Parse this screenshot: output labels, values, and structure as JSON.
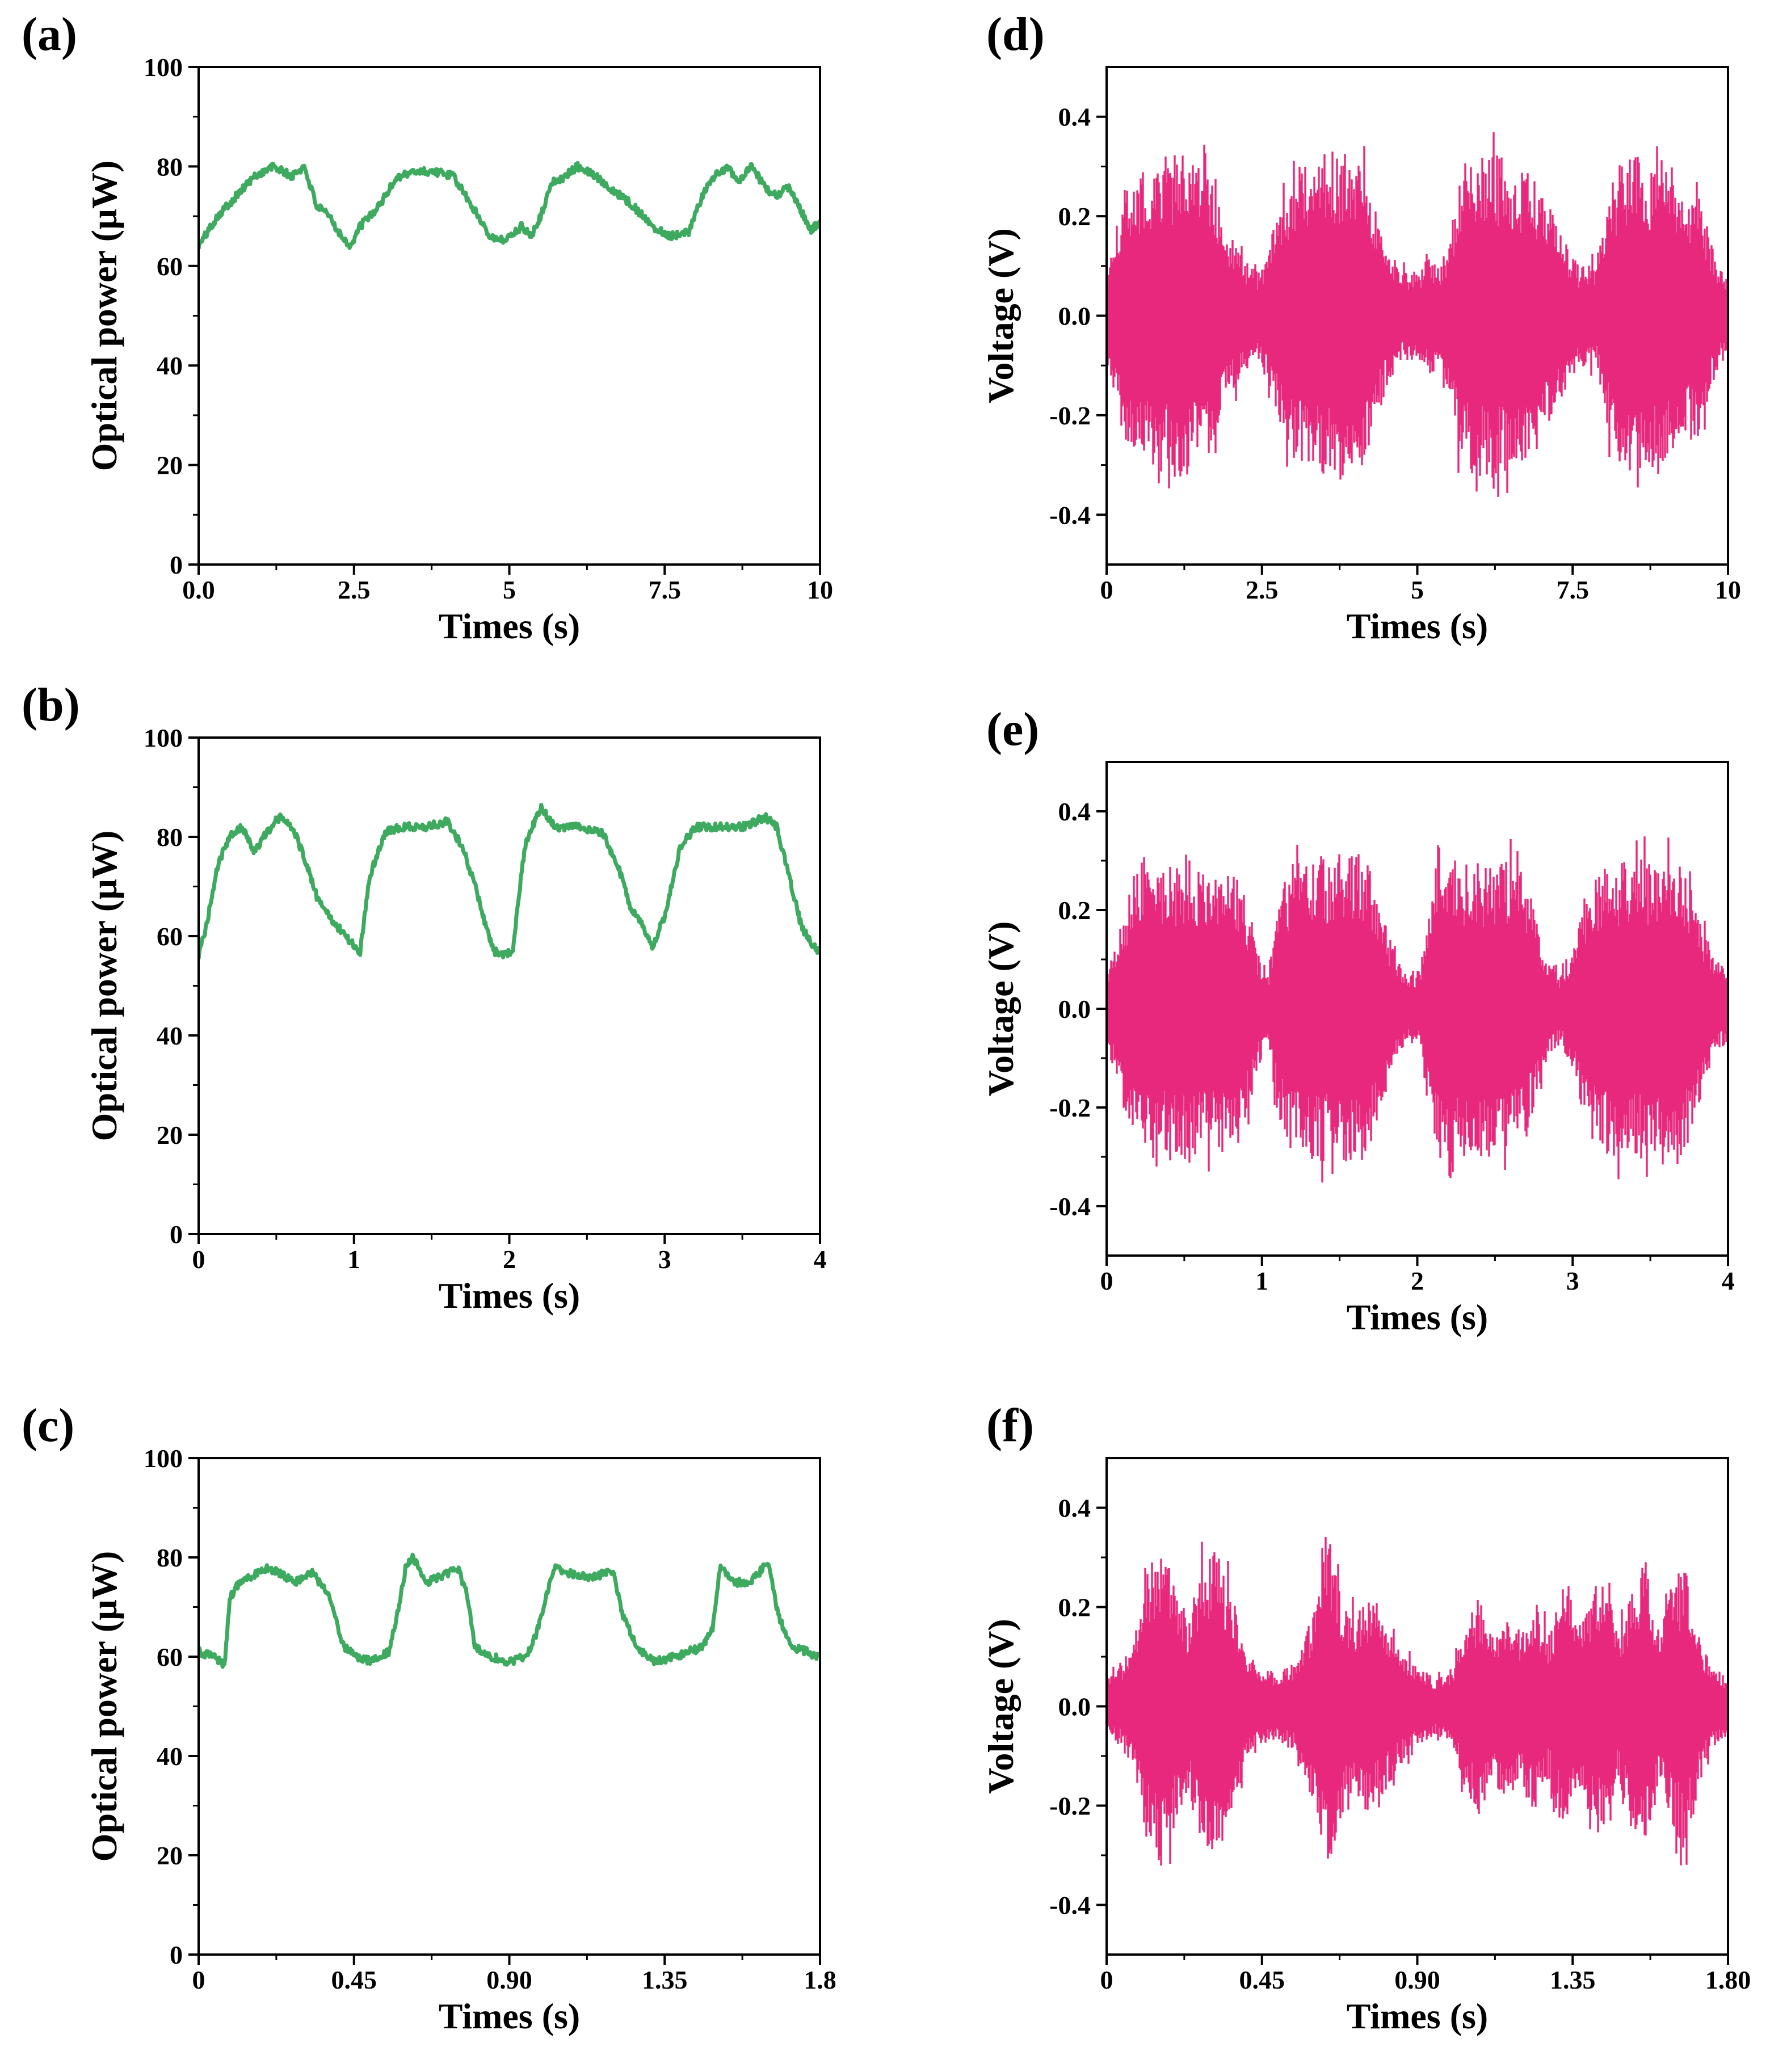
{
  "chart_data": [
    {
      "id": "a",
      "panel_label": "(a)",
      "type": "line",
      "signal": "power",
      "xlabel": "Times (s)",
      "ylabel": "Optical power (µW)",
      "xlim": [
        0,
        10
      ],
      "ylim": [
        0,
        100
      ],
      "xticks": [
        0,
        2.5,
        5,
        7.5,
        10
      ],
      "xtick_labels": [
        "0.0",
        "2.5",
        "5",
        "7.5",
        "10"
      ],
      "yticks": [
        0,
        20,
        40,
        60,
        80,
        100
      ],
      "ytick_labels": [
        "0",
        "20",
        "40",
        "60",
        "80",
        "100"
      ],
      "color": "#3daa5f",
      "series": [
        {
          "name": "Optical power",
          "x": [
            0,
            0.3,
            0.6,
            0.9,
            1.2,
            1.5,
            1.7,
            1.9,
            2.1,
            2.3,
            2.45,
            2.6,
            2.9,
            3.2,
            3.5,
            3.8,
            4.1,
            4.3,
            4.5,
            4.7,
            4.85,
            5,
            5.2,
            5.35,
            5.5,
            5.7,
            5.9,
            6.1,
            6.4,
            6.7,
            7,
            7.3,
            7.6,
            7.9,
            8.1,
            8.3,
            8.5,
            8.7,
            8.9,
            9.1,
            9.3,
            9.5,
            9.7,
            9.85,
            10
          ],
          "y": [
            64,
            70,
            74,
            78,
            80,
            78,
            80,
            72,
            70,
            66,
            64,
            68,
            72,
            78,
            79,
            79,
            78,
            74,
            70,
            66,
            65,
            66,
            68,
            66,
            70,
            77,
            78,
            80,
            78,
            75,
            72,
            68,
            66,
            67,
            74,
            78,
            80,
            77,
            80,
            76,
            74,
            76,
            71,
            67,
            69
          ]
        }
      ]
    },
    {
      "id": "b",
      "panel_label": "(b)",
      "type": "line",
      "signal": "power",
      "xlabel": "Times (s)",
      "ylabel": "Optical power (µW)",
      "xlim": [
        0,
        4
      ],
      "ylim": [
        0,
        100
      ],
      "xticks": [
        0,
        1,
        2,
        3,
        4
      ],
      "xtick_labels": [
        "0",
        "1",
        "2",
        "3",
        "4"
      ],
      "yticks": [
        0,
        20,
        40,
        60,
        80,
        100
      ],
      "ytick_labels": [
        "0",
        "20",
        "40",
        "60",
        "80",
        "100"
      ],
      "color": "#3daa5f",
      "series": [
        {
          "name": "Optical power",
          "x": [
            0,
            0.05,
            0.12,
            0.2,
            0.28,
            0.36,
            0.44,
            0.52,
            0.6,
            0.68,
            0.76,
            0.84,
            0.92,
            1,
            1.04,
            1.1,
            1.2,
            1.3,
            1.45,
            1.6,
            1.7,
            1.78,
            1.85,
            1.9,
            1.96,
            2.02,
            2.1,
            2.2,
            2.3,
            2.45,
            2.6,
            2.7,
            2.78,
            2.86,
            2.92,
            3,
            3.1,
            3.2,
            3.35,
            3.5,
            3.65,
            3.72,
            3.8,
            3.88,
            3.95,
            4
          ],
          "y": [
            56,
            62,
            74,
            80,
            82,
            77,
            81,
            84,
            82,
            76,
            68,
            64,
            61,
            58,
            57,
            72,
            81,
            82,
            82,
            83,
            78,
            70,
            62,
            57,
            56,
            57,
            78,
            86,
            82,
            82,
            81,
            74,
            66,
            62,
            58,
            64,
            78,
            82,
            82,
            82,
            84,
            82,
            72,
            62,
            58,
            57
          ]
        }
      ]
    },
    {
      "id": "c",
      "panel_label": "(c)",
      "type": "line",
      "signal": "power",
      "xlabel": "Times (s)",
      "ylabel": "Optical power (µW)",
      "xlim": [
        0,
        1.8
      ],
      "ylim": [
        0,
        100
      ],
      "xticks": [
        0,
        0.45,
        0.9,
        1.35,
        1.8
      ],
      "xtick_labels": [
        "0",
        "0.45",
        "0.90",
        "1.35",
        "1.8"
      ],
      "yticks": [
        0,
        20,
        40,
        60,
        80,
        100
      ],
      "ytick_labels": [
        "0",
        "20",
        "40",
        "60",
        "80",
        "100"
      ],
      "color": "#3daa5f",
      "series": [
        {
          "name": "Optical power",
          "x": [
            0,
            0.05,
            0.075,
            0.09,
            0.12,
            0.2,
            0.28,
            0.33,
            0.38,
            0.42,
            0.46,
            0.5,
            0.55,
            0.58,
            0.6,
            0.62,
            0.66,
            0.7,
            0.75,
            0.78,
            0.8,
            0.85,
            0.9,
            0.95,
            0.98,
            1.03,
            1.06,
            1.12,
            1.2,
            1.23,
            1.27,
            1.32,
            1.38,
            1.42,
            1.46,
            1.49,
            1.51,
            1.55,
            1.6,
            1.65,
            1.68,
            1.72,
            1.76,
            1.8
          ],
          "y": [
            61,
            60,
            58,
            72,
            75,
            78,
            75,
            77,
            72,
            62,
            60,
            59,
            61,
            70,
            78,
            80,
            75,
            76,
            78,
            72,
            62,
            60,
            59,
            60,
            65,
            78,
            77,
            76,
            77,
            68,
            62,
            59,
            60,
            61,
            62,
            66,
            78,
            75,
            75,
            79,
            68,
            62,
            61,
            60
          ]
        }
      ]
    },
    {
      "id": "d",
      "panel_label": "(d)",
      "type": "line",
      "signal": "voltage",
      "xlabel": "Times (s)",
      "ylabel": "Voltage (V)",
      "xlim": [
        0,
        10
      ],
      "ylim": [
        -0.5,
        0.5
      ],
      "xticks": [
        0,
        2.5,
        5,
        7.5,
        10
      ],
      "xtick_labels": [
        "0",
        "2.5",
        "5",
        "7.5",
        "10"
      ],
      "yticks": [
        -0.4,
        -0.2,
        0,
        0.2,
        0.4
      ],
      "ytick_labels": [
        "-0.4",
        "-0.2",
        "0.0",
        "0.2",
        "0.4"
      ],
      "color": "#e8287c",
      "series": [
        {
          "name": "Voltage envelope",
          "x": [
            0,
            0.1,
            0.3,
            0.6,
            0.9,
            1.2,
            1.5,
            1.7,
            1.9,
            2.1,
            2.3,
            2.45,
            2.6,
            2.9,
            3.2,
            3.5,
            3.8,
            4.1,
            4.3,
            4.5,
            4.7,
            4.85,
            5,
            5.2,
            5.35,
            5.5,
            5.7,
            5.9,
            6.1,
            6.4,
            6.7,
            7,
            7.3,
            7.6,
            7.9,
            8.1,
            8.3,
            8.5,
            8.7,
            8.9,
            9.1,
            9.3,
            9.5,
            9.7,
            9.85,
            10
          ],
          "y": [
            0.09,
            0.15,
            0.26,
            0.3,
            0.32,
            0.33,
            0.3,
            0.32,
            0.16,
            0.15,
            0.1,
            0.09,
            0.14,
            0.27,
            0.32,
            0.33,
            0.33,
            0.32,
            0.24,
            0.15,
            0.1,
            0.09,
            0.09,
            0.12,
            0.1,
            0.15,
            0.3,
            0.33,
            0.33,
            0.32,
            0.3,
            0.26,
            0.17,
            0.1,
            0.11,
            0.26,
            0.32,
            0.33,
            0.3,
            0.33,
            0.27,
            0.23,
            0.27,
            0.16,
            0.1,
            0.08
          ]
        }
      ]
    },
    {
      "id": "e",
      "panel_label": "(e)",
      "type": "line",
      "signal": "voltage",
      "xlabel": "Times (s)",
      "ylabel": "Voltage (V)",
      "xlim": [
        0,
        4
      ],
      "ylim": [
        -0.5,
        0.5
      ],
      "xticks": [
        0,
        1,
        2,
        3,
        4
      ],
      "xtick_labels": [
        "0",
        "1",
        "2",
        "3",
        "4"
      ],
      "yticks": [
        -0.4,
        -0.2,
        0,
        0.2,
        0.4
      ],
      "ytick_labels": [
        "-0.4",
        "-0.2",
        "0.0",
        "0.2",
        "0.4"
      ],
      "color": "#e8287c",
      "series": [
        {
          "name": "Voltage envelope",
          "x": [
            0,
            0.05,
            0.12,
            0.2,
            0.28,
            0.36,
            0.44,
            0.52,
            0.6,
            0.68,
            0.76,
            0.84,
            0.92,
            1,
            1.04,
            1.1,
            1.2,
            1.3,
            1.45,
            1.6,
            1.7,
            1.78,
            1.85,
            1.9,
            1.96,
            2.02,
            2.1,
            2.2,
            2.3,
            2.45,
            2.6,
            2.7,
            2.78,
            2.86,
            2.92,
            3,
            3.1,
            3.2,
            3.35,
            3.5,
            3.65,
            3.72,
            3.8,
            3.88,
            3.95,
            4
          ],
          "y": [
            0.09,
            0.12,
            0.22,
            0.3,
            0.32,
            0.28,
            0.3,
            0.32,
            0.3,
            0.29,
            0.3,
            0.28,
            0.2,
            0.08,
            0.07,
            0.22,
            0.3,
            0.31,
            0.31,
            0.32,
            0.29,
            0.2,
            0.12,
            0.08,
            0.07,
            0.08,
            0.28,
            0.35,
            0.3,
            0.3,
            0.3,
            0.27,
            0.16,
            0.1,
            0.07,
            0.12,
            0.26,
            0.3,
            0.3,
            0.31,
            0.33,
            0.3,
            0.22,
            0.12,
            0.08,
            0.07
          ]
        }
      ]
    },
    {
      "id": "f",
      "panel_label": "(f)",
      "type": "line",
      "signal": "voltage",
      "xlabel": "Times (s)",
      "ylabel": "Voltage (V)",
      "xlim": [
        0,
        1.8
      ],
      "ylim": [
        -0.5,
        0.5
      ],
      "xticks": [
        0,
        0.45,
        0.9,
        1.35,
        1.8
      ],
      "xtick_labels": [
        "0",
        "0.45",
        "0.90",
        "1.35",
        "1.80"
      ],
      "yticks": [
        -0.4,
        -0.2,
        0,
        0.2,
        0.4
      ],
      "ytick_labels": [
        "-0.4",
        "-0.2",
        "0.0",
        "0.2",
        "0.4"
      ],
      "color": "#e8287c",
      "series": [
        {
          "name": "Voltage envelope",
          "x": [
            0,
            0.04,
            0.08,
            0.12,
            0.16,
            0.2,
            0.24,
            0.28,
            0.32,
            0.36,
            0.4,
            0.45,
            0.5,
            0.55,
            0.6,
            0.64,
            0.68,
            0.72,
            0.76,
            0.8,
            0.85,
            0.9,
            0.95,
            1,
            1.04,
            1.08,
            1.12,
            1.16,
            1.2,
            1.24,
            1.28,
            1.32,
            1.36,
            1.4,
            1.44,
            1.48,
            1.52,
            1.56,
            1.6,
            1.64,
            1.68,
            1.72,
            1.76,
            1.8
          ],
          "y": [
            0.06,
            0.08,
            0.14,
            0.28,
            0.33,
            0.24,
            0.18,
            0.3,
            0.32,
            0.24,
            0.12,
            0.08,
            0.07,
            0.1,
            0.2,
            0.33,
            0.22,
            0.2,
            0.22,
            0.18,
            0.12,
            0.08,
            0.06,
            0.07,
            0.18,
            0.22,
            0.15,
            0.2,
            0.16,
            0.23,
            0.14,
            0.26,
            0.16,
            0.22,
            0.28,
            0.15,
            0.23,
            0.3,
            0.16,
            0.25,
            0.3,
            0.14,
            0.08,
            0.06
          ]
        }
      ]
    }
  ]
}
